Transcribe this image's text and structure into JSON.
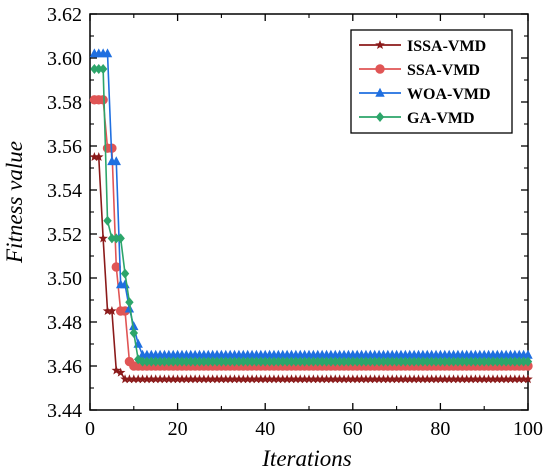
{
  "chart_data": {
    "type": "line",
    "xlabel": "Iterations",
    "ylabel": "Fitness value",
    "xlim": [
      0,
      100
    ],
    "ylim": [
      3.44,
      3.62
    ],
    "x_ticks": [
      0,
      20,
      40,
      60,
      80,
      100
    ],
    "y_ticks": [
      3.44,
      3.46,
      3.48,
      3.5,
      3.52,
      3.54,
      3.56,
      3.58,
      3.6,
      3.62
    ],
    "y_tick_labels": [
      "3.44",
      "3.46",
      "3.48",
      "3.50",
      "3.52",
      "3.54",
      "3.56",
      "3.58",
      "3.60",
      "3.62"
    ],
    "grid": false,
    "legend_position": "top-right",
    "series": [
      {
        "name": "ISSA-VMD",
        "color": "#8b1a1a",
        "marker": "star",
        "points": [
          [
            1,
            3.555
          ],
          [
            2,
            3.555
          ],
          [
            3,
            3.518
          ],
          [
            4,
            3.485
          ],
          [
            5,
            3.485
          ],
          [
            6,
            3.458
          ],
          [
            7,
            3.457
          ],
          [
            8,
            3.454
          ],
          [
            100,
            3.454
          ]
        ]
      },
      {
        "name": "SSA-VMD",
        "color": "#e05555",
        "marker": "circle",
        "points": [
          [
            1,
            3.581
          ],
          [
            2,
            3.581
          ],
          [
            3,
            3.581
          ],
          [
            4,
            3.559
          ],
          [
            5,
            3.559
          ],
          [
            6,
            3.505
          ],
          [
            7,
            3.485
          ],
          [
            8,
            3.485
          ],
          [
            9,
            3.462
          ],
          [
            10,
            3.46
          ],
          [
            100,
            3.46
          ]
        ]
      },
      {
        "name": "WOA-VMD",
        "color": "#1f6fe0",
        "marker": "triangle",
        "points": [
          [
            1,
            3.602
          ],
          [
            2,
            3.602
          ],
          [
            3,
            3.602
          ],
          [
            4,
            3.602
          ],
          [
            5,
            3.553
          ],
          [
            6,
            3.553
          ],
          [
            7,
            3.497
          ],
          [
            8,
            3.497
          ],
          [
            9,
            3.486
          ],
          [
            10,
            3.478
          ],
          [
            11,
            3.47
          ],
          [
            12,
            3.465
          ],
          [
            100,
            3.465
          ]
        ]
      },
      {
        "name": "GA-VMD",
        "color": "#2ca56a",
        "marker": "diamond",
        "points": [
          [
            1,
            3.595
          ],
          [
            2,
            3.595
          ],
          [
            3,
            3.595
          ],
          [
            4,
            3.526
          ],
          [
            5,
            3.518
          ],
          [
            6,
            3.518
          ],
          [
            7,
            3.518
          ],
          [
            8,
            3.502
          ],
          [
            9,
            3.489
          ],
          [
            10,
            3.475
          ],
          [
            11,
            3.463
          ],
          [
            12,
            3.462
          ],
          [
            100,
            3.462
          ]
        ]
      }
    ]
  }
}
